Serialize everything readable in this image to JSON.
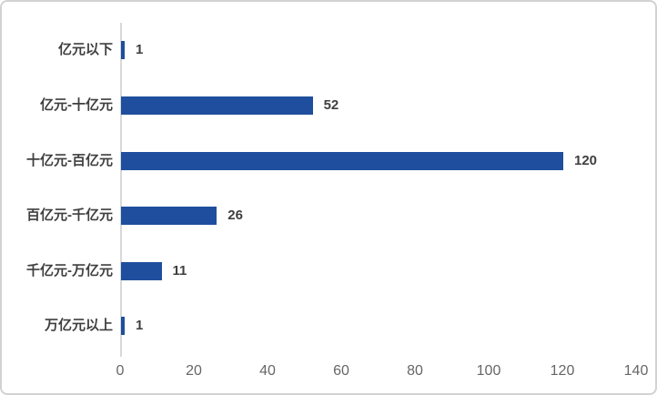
{
  "chart_data": {
    "type": "bar",
    "orientation": "horizontal",
    "title": "",
    "xlabel": "",
    "ylabel": "",
    "categories": [
      "亿元以下",
      "亿元-十亿元",
      "十亿元-百亿元",
      "百亿元-千亿元",
      "千亿元-万亿元",
      "万亿元以上"
    ],
    "values": [
      1,
      52,
      120,
      26,
      11,
      1
    ],
    "data_labels": [
      "1",
      "52",
      "120",
      "26",
      "11",
      "1"
    ],
    "xlim": [
      0,
      140
    ],
    "x_ticks": [
      "0",
      "20",
      "40",
      "60",
      "80",
      "100",
      "120",
      "140"
    ],
    "x_tick_values": [
      0,
      20,
      40,
      60,
      80,
      100,
      120,
      140
    ],
    "grid": false,
    "legend": false,
    "colors": {
      "bar": "#1F4E9E",
      "axis_line": "#D9D9D9",
      "category_label": "#3F3F3F",
      "value_label": "#3F3F3F",
      "tick_label": "#666666",
      "card_border": "#D2D2D2",
      "background": "#FFFFFF"
    }
  }
}
